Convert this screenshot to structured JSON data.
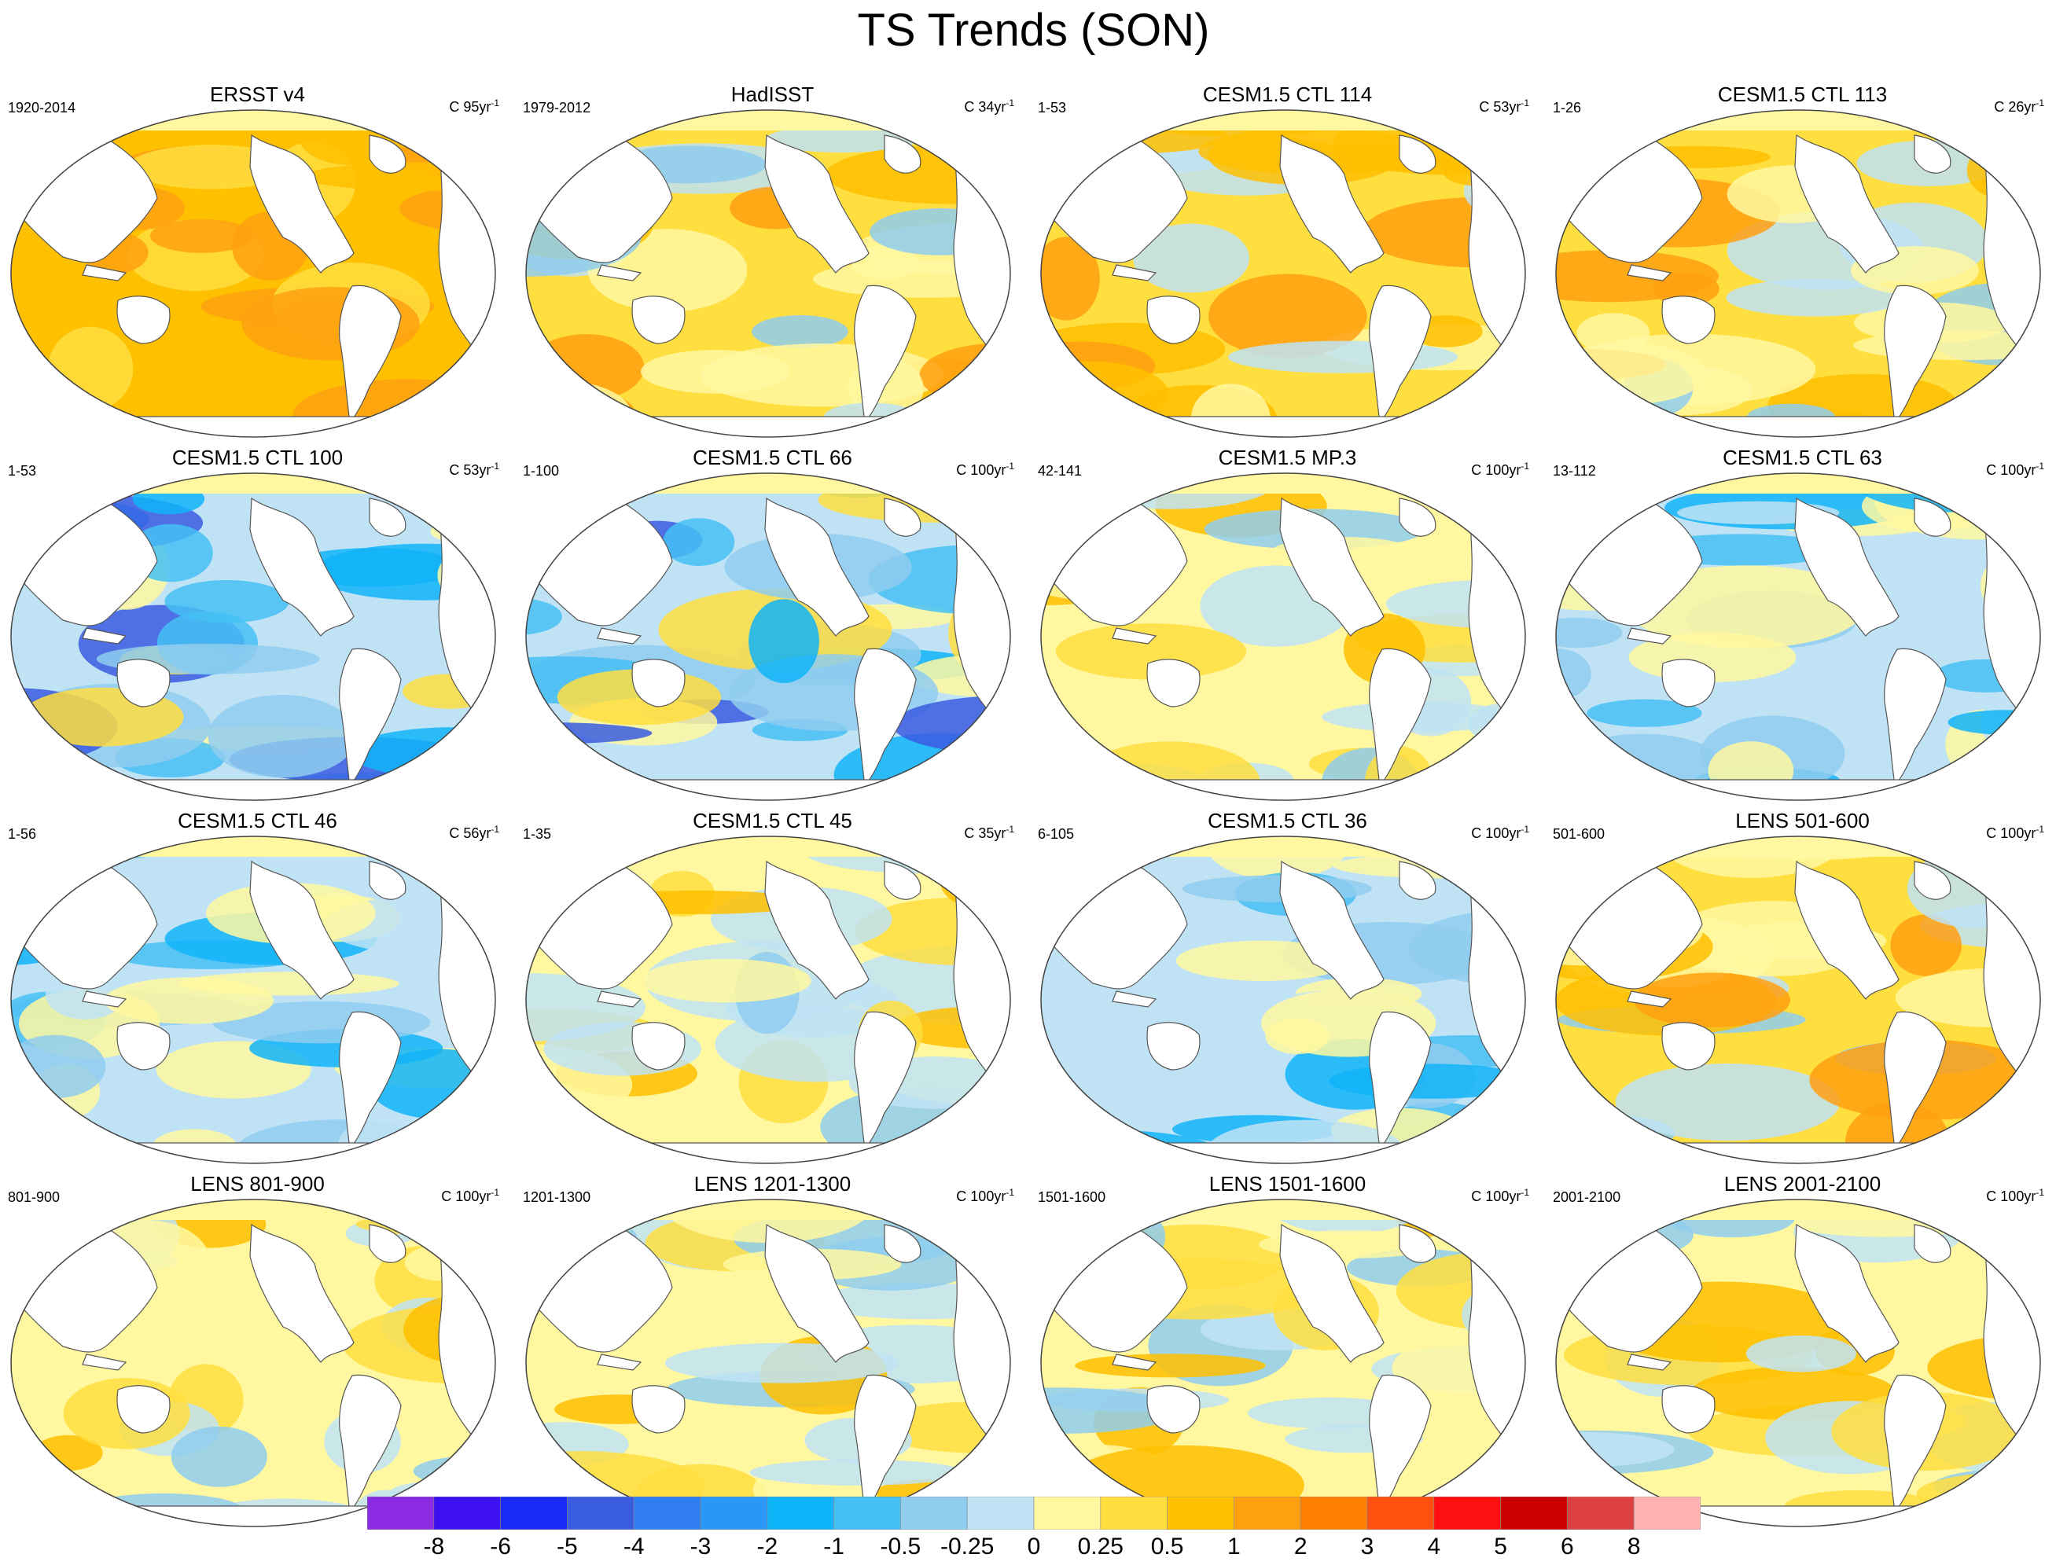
{
  "title": "TS Trends (SON)",
  "colorbar": {
    "colors": [
      "#8a2be2",
      "#3c10f0",
      "#1a2af5",
      "#3a5ce0",
      "#2f7df0",
      "#2a96f5",
      "#10b4f8",
      "#45c0f5",
      "#8fcdee",
      "#bfe3f5",
      "#fff8a0",
      "#ffde40",
      "#ffc000",
      "#ffa010",
      "#ff8000",
      "#ff5010",
      "#ff1010",
      "#cc0000",
      "#dd4040",
      "#ffb0b0"
    ],
    "labels": [
      "-8",
      "-6",
      "-5",
      "-4",
      "-3",
      "-2",
      "-1",
      "-0.5",
      "-0.25",
      "0",
      "0.25",
      "0.5",
      "1",
      "2",
      "3",
      "4",
      "5",
      "6",
      "8"
    ]
  },
  "chart_data": [
    {
      "type": "heatmap",
      "title": "ERSST v4",
      "period": "1920-2014",
      "scale": "C 95yr",
      "scale_exp": "-1",
      "pattern": "warm-strong"
    },
    {
      "type": "heatmap",
      "title": "HadISST",
      "period": "1979-2012",
      "scale": "C 34yr",
      "scale_exp": "-1",
      "pattern": "mixed-warm"
    },
    {
      "type": "heatmap",
      "title": "CESM1.5 CTL 114",
      "period": "1-53",
      "scale": "C 53yr",
      "scale_exp": "-1",
      "pattern": "warm"
    },
    {
      "type": "heatmap",
      "title": "CESM1.5 CTL 113",
      "period": "1-26",
      "scale": "C 26yr",
      "scale_exp": "-1",
      "pattern": "mixed-warm"
    },
    {
      "type": "heatmap",
      "title": "CESM1.5 CTL 100",
      "period": "1-53",
      "scale": "C 53yr",
      "scale_exp": "-1",
      "pattern": "cool-strong"
    },
    {
      "type": "heatmap",
      "title": "CESM1.5 CTL 66",
      "period": "1-100",
      "scale": "C 100yr",
      "scale_exp": "-1",
      "pattern": "cool-strong"
    },
    {
      "type": "heatmap",
      "title": "CESM1.5 MP.3",
      "period": "42-141",
      "scale": "C 100yr",
      "scale_exp": "-1",
      "pattern": "mixed"
    },
    {
      "type": "heatmap",
      "title": "CESM1.5 CTL 63",
      "period": "13-112",
      "scale": "C 100yr",
      "scale_exp": "-1",
      "pattern": "cool"
    },
    {
      "type": "heatmap",
      "title": "CESM1.5 CTL 46",
      "period": "1-56",
      "scale": "C 56yr",
      "scale_exp": "-1",
      "pattern": "cool"
    },
    {
      "type": "heatmap",
      "title": "CESM1.5 CTL 45",
      "period": "1-35",
      "scale": "C 35yr",
      "scale_exp": "-1",
      "pattern": "mixed"
    },
    {
      "type": "heatmap",
      "title": "CESM1.5 CTL 36",
      "period": "6-105",
      "scale": "C 100yr",
      "scale_exp": "-1",
      "pattern": "cool"
    },
    {
      "type": "heatmap",
      "title": "LENS 501-600",
      "period": "501-600",
      "scale": "C 100yr",
      "scale_exp": "-1",
      "pattern": "mixed-warm"
    },
    {
      "type": "heatmap",
      "title": "LENS 801-900",
      "period": "801-900",
      "scale": "C 100yr",
      "scale_exp": "-1",
      "pattern": "mixed"
    },
    {
      "type": "heatmap",
      "title": "LENS 1201-1300",
      "period": "1201-1300",
      "scale": "C 100yr",
      "scale_exp": "-1",
      "pattern": "mixed"
    },
    {
      "type": "heatmap",
      "title": "LENS 1501-1600",
      "period": "1501-1600",
      "scale": "C 100yr",
      "scale_exp": "-1",
      "pattern": "mixed"
    },
    {
      "type": "heatmap",
      "title": "LENS 2001-2100",
      "period": "2001-2100",
      "scale": "C 100yr",
      "scale_exp": "-1",
      "pattern": "mixed"
    }
  ]
}
